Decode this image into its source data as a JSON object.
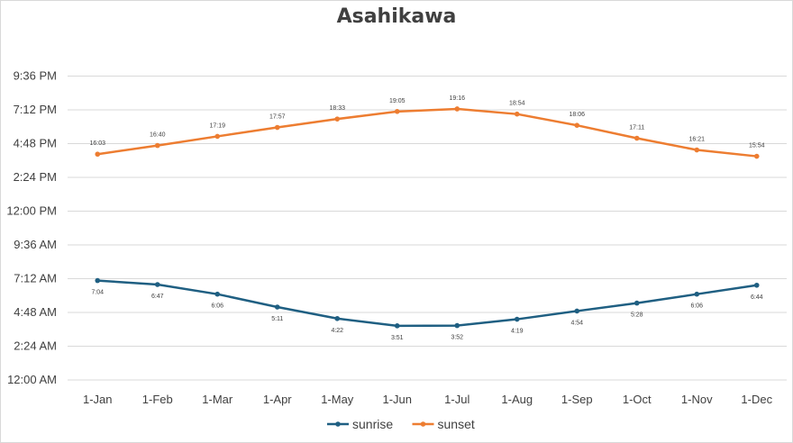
{
  "chart_data": {
    "type": "line",
    "title": "Asahikawa",
    "categories": [
      "1-Jan",
      "1-Feb",
      "1-Mar",
      "1-Apr",
      "1-May",
      "1-Jun",
      "1-Jul",
      "1-Aug",
      "1-Sep",
      "1-Oct",
      "1-Nov",
      "1-Dec"
    ],
    "y_unit": "hours",
    "ylim": [
      0,
      24
    ],
    "y_ticks": [
      0,
      2.4,
      4.8,
      7.2,
      9.6,
      12,
      14.4,
      16.8,
      19.2,
      21.6
    ],
    "y_tick_labels": [
      "12:00 AM",
      "2:24 AM",
      "4:48 AM",
      "7:12 AM",
      "9:36 AM",
      "12:00 PM",
      "2:24 PM",
      "4:48 PM",
      "7:12 PM",
      "9:36 PM"
    ],
    "grid": true,
    "legend_position": "bottom",
    "series": [
      {
        "name": "sunrise",
        "color": "#1f5f82",
        "values": [
          7.0667,
          6.7833,
          6.1,
          5.1833,
          4.3667,
          3.85,
          3.8667,
          4.3167,
          4.9,
          5.4667,
          6.1,
          6.7333
        ],
        "labels": [
          "7:04",
          "6:47",
          "6:06",
          "5:11",
          "4:22",
          "3:51",
          "3:52",
          "4:19",
          "4:54",
          "5:28",
          "6:06",
          "6:44"
        ],
        "label_position": "below"
      },
      {
        "name": "sunset",
        "color": "#ed7d31",
        "values": [
          16.05,
          16.6667,
          17.3167,
          17.95,
          18.55,
          19.0833,
          19.2667,
          18.9,
          18.1,
          17.1833,
          16.35,
          15.9
        ],
        "labels": [
          "16:03",
          "16:40",
          "17:19",
          "17:57",
          "18:33",
          "19:05",
          "19:16",
          "18:54",
          "18:06",
          "17:11",
          "16:21",
          "15:54"
        ],
        "label_position": "above"
      }
    ]
  }
}
